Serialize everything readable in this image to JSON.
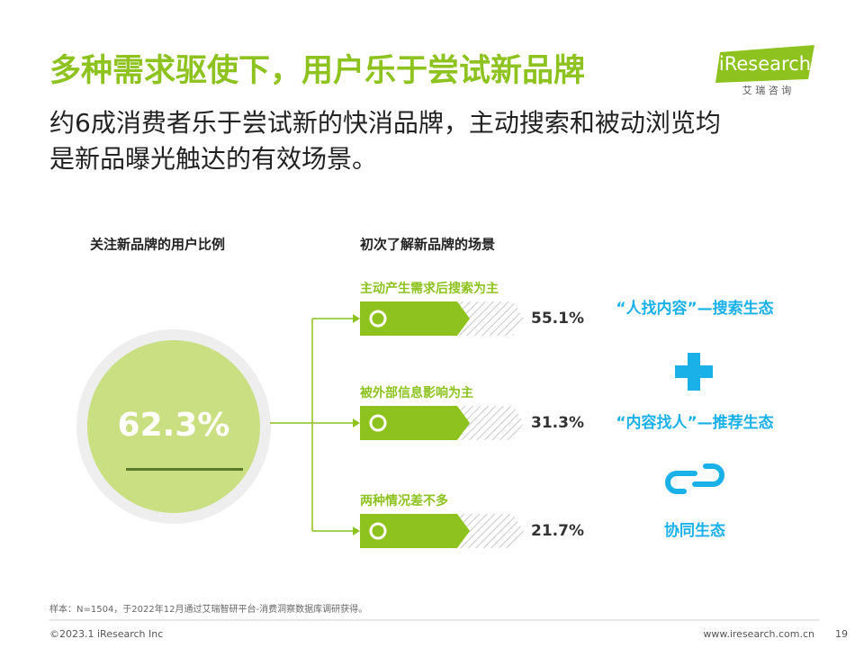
{
  "header": {
    "title": "多种需求驱使下，用户乐于尝试新品牌",
    "subtitle_lines": [
      "约6成消费者乐于尝试新的快消品牌，主动搜索和被动浏览均",
      "是新品曝光触达的有效场景。"
    ]
  },
  "logo": {
    "name": "iResearch",
    "cn": "艾 瑞 咨 询"
  },
  "left": {
    "heading": "关注新品牌的用户比例",
    "value_label": "62.3%"
  },
  "scenes": {
    "heading": "初次了解新品牌的场景",
    "items": [
      {
        "label": "主动产生需求后搜索为主",
        "value_label": "55.1%"
      },
      {
        "label": "被外部信息影响为主",
        "value_label": "31.3%"
      },
      {
        "label": "两种情况差不多",
        "value_label": "21.7%"
      }
    ]
  },
  "ecosystem": {
    "items": [
      "“人找内容”—搜索生态",
      "“内容找人”—推荐生态",
      "协同生态"
    ]
  },
  "footer": {
    "note": "样本：N=1504，于2022年12月通过艾瑞智研平台-消费洞察数据库调研获得。",
    "copyright": "©2023.1 iResearch Inc",
    "url": "www.iresearch.com.cn",
    "page": "19"
  }
}
